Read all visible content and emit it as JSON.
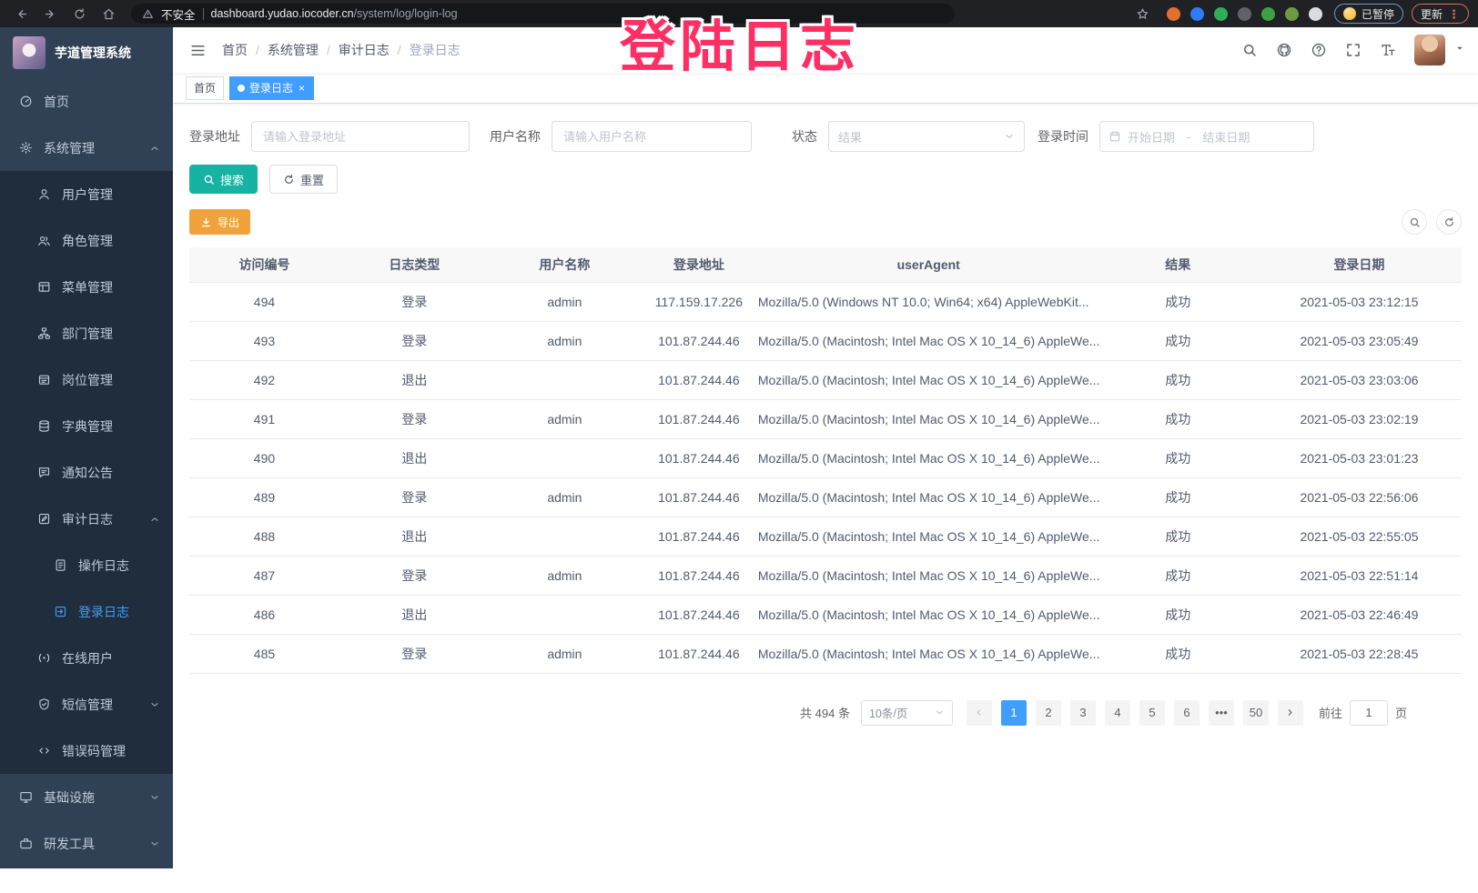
{
  "browser": {
    "security_label": "不安全",
    "url_host": "dashboard.yudao.iocoder.cn",
    "url_path": "/system/log/login-log",
    "paused_badge": "已暂停",
    "update_button": "更新",
    "extensions": [
      {
        "name": "adblocker-icon",
        "color": "#e2702a"
      },
      {
        "name": "blue-gem-icon",
        "color": "#2f7df6"
      },
      {
        "name": "green-app-icon",
        "color": "#2fae57"
      },
      {
        "name": "grid-extension-icon",
        "color": "#5f6368"
      },
      {
        "name": "switch-on-icon",
        "color": "#3fa142"
      },
      {
        "name": "leaf-extension-icon",
        "color": "#6d9a43"
      },
      {
        "name": "puzzle-extensions-icon",
        "color": "#dadce0"
      }
    ]
  },
  "annotation": {
    "text": "登陆日志"
  },
  "sidebar": {
    "title": "芋道管理系统",
    "items": [
      {
        "icon": "dashboard",
        "label": "首页",
        "level": 0
      },
      {
        "icon": "gear",
        "label": "系统管理",
        "level": 0,
        "arrow": "up"
      },
      {
        "icon": "user",
        "label": "用户管理",
        "level": 1,
        "sub": true
      },
      {
        "icon": "peoples",
        "label": "角色管理",
        "level": 1,
        "sub": true
      },
      {
        "icon": "menu",
        "label": "菜单管理",
        "level": 1,
        "sub": true
      },
      {
        "icon": "tree",
        "label": "部门管理",
        "level": 1,
        "sub": true
      },
      {
        "icon": "post",
        "label": "岗位管理",
        "level": 1,
        "sub": true
      },
      {
        "icon": "dict",
        "label": "字典管理",
        "level": 1,
        "sub": true
      },
      {
        "icon": "message",
        "label": "通知公告",
        "level": 1,
        "sub": true
      },
      {
        "icon": "log",
        "label": "审计日志",
        "level": 1,
        "sub": true,
        "arrow": "up"
      },
      {
        "icon": "form",
        "label": "操作日志",
        "level": 2,
        "sub": true
      },
      {
        "icon": "logininfor",
        "label": "登录日志",
        "level": 2,
        "sub": true,
        "active": true
      },
      {
        "icon": "online",
        "label": "在线用户",
        "level": 1,
        "sub": true
      },
      {
        "icon": "sms",
        "label": "短信管理",
        "level": 1,
        "sub": true,
        "arrow": "down"
      },
      {
        "icon": "code",
        "label": "错误码管理",
        "level": 1,
        "sub": true
      },
      {
        "icon": "monitor",
        "label": "基础设施",
        "level": 0,
        "arrow": "down"
      },
      {
        "icon": "tool",
        "label": "研发工具",
        "level": 0,
        "arrow": "down"
      }
    ]
  },
  "header": {
    "breadcrumb": [
      {
        "label": "首页"
      },
      {
        "label": "系统管理"
      },
      {
        "label": "审计日志"
      },
      {
        "label": "登录日志",
        "last": true
      }
    ]
  },
  "tags": [
    {
      "label": "首页"
    },
    {
      "label": "登录日志",
      "active": true
    }
  ],
  "filters": {
    "address": {
      "label": "登录地址",
      "placeholder": "请输入登录地址"
    },
    "username": {
      "label": "用户名称",
      "placeholder": "请输入用户名称"
    },
    "status": {
      "label": "状态",
      "placeholder": "结果"
    },
    "time": {
      "label": "登录时间",
      "start_placeholder": "开始日期",
      "separator": "-",
      "end_placeholder": "结束日期"
    },
    "search_label": "搜索",
    "reset_label": "重置",
    "export_label": "导出"
  },
  "table": {
    "headers": [
      "访问编号",
      "日志类型",
      "用户名称",
      "登录地址",
      "userAgent",
      "结果",
      "登录日期"
    ],
    "rows": [
      {
        "id": "494",
        "type": "登录",
        "user": "admin",
        "ip": "117.159.17.226",
        "ua": "Mozilla/5.0 (Windows NT 10.0; Win64; x64) AppleWebKit...",
        "result": "成功",
        "date": "2021-05-03 23:12:15"
      },
      {
        "id": "493",
        "type": "登录",
        "user": "admin",
        "ip": "101.87.244.46",
        "ua": "Mozilla/5.0 (Macintosh; Intel Mac OS X 10_14_6) AppleWe...",
        "result": "成功",
        "date": "2021-05-03 23:05:49"
      },
      {
        "id": "492",
        "type": "退出",
        "user": "",
        "ip": "101.87.244.46",
        "ua": "Mozilla/5.0 (Macintosh; Intel Mac OS X 10_14_6) AppleWe...",
        "result": "成功",
        "date": "2021-05-03 23:03:06"
      },
      {
        "id": "491",
        "type": "登录",
        "user": "admin",
        "ip": "101.87.244.46",
        "ua": "Mozilla/5.0 (Macintosh; Intel Mac OS X 10_14_6) AppleWe...",
        "result": "成功",
        "date": "2021-05-03 23:02:19"
      },
      {
        "id": "490",
        "type": "退出",
        "user": "",
        "ip": "101.87.244.46",
        "ua": "Mozilla/5.0 (Macintosh; Intel Mac OS X 10_14_6) AppleWe...",
        "result": "成功",
        "date": "2021-05-03 23:01:23"
      },
      {
        "id": "489",
        "type": "登录",
        "user": "admin",
        "ip": "101.87.244.46",
        "ua": "Mozilla/5.0 (Macintosh; Intel Mac OS X 10_14_6) AppleWe...",
        "result": "成功",
        "date": "2021-05-03 22:56:06"
      },
      {
        "id": "488",
        "type": "退出",
        "user": "",
        "ip": "101.87.244.46",
        "ua": "Mozilla/5.0 (Macintosh; Intel Mac OS X 10_14_6) AppleWe...",
        "result": "成功",
        "date": "2021-05-03 22:55:05"
      },
      {
        "id": "487",
        "type": "登录",
        "user": "admin",
        "ip": "101.87.244.46",
        "ua": "Mozilla/5.0 (Macintosh; Intel Mac OS X 10_14_6) AppleWe...",
        "result": "成功",
        "date": "2021-05-03 22:51:14"
      },
      {
        "id": "486",
        "type": "退出",
        "user": "",
        "ip": "101.87.244.46",
        "ua": "Mozilla/5.0 (Macintosh; Intel Mac OS X 10_14_6) AppleWe...",
        "result": "成功",
        "date": "2021-05-03 22:46:49"
      },
      {
        "id": "485",
        "type": "登录",
        "user": "admin",
        "ip": "101.87.244.46",
        "ua": "Mozilla/5.0 (Macintosh; Intel Mac OS X 10_14_6) AppleWe...",
        "result": "成功",
        "date": "2021-05-03 22:28:45"
      }
    ]
  },
  "pagination": {
    "total_label": "共 494 条",
    "page_size_label": "10条/页",
    "pages": [
      {
        "label": "1",
        "active": true
      },
      {
        "label": "2"
      },
      {
        "label": "3"
      },
      {
        "label": "4"
      },
      {
        "label": "5"
      },
      {
        "label": "6"
      },
      {
        "label": "•••"
      },
      {
        "label": "50"
      }
    ],
    "goto_label": "前往",
    "goto_value": "1",
    "goto_suffix": "页"
  }
}
